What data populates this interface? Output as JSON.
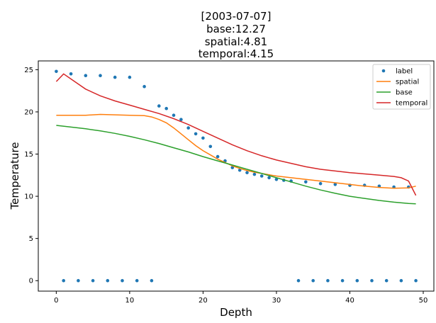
{
  "chart_data": {
    "type": "line",
    "title_lines": [
      "[2003-07-07]",
      "base:12.27",
      "spatial:4.81",
      "temporal:4.15"
    ],
    "xlabel": "Depth",
    "ylabel": "Temperature",
    "xlim": [
      -2.45,
      51.45
    ],
    "ylim": [
      -1.24,
      26.04
    ],
    "x_ticks": [
      0,
      10,
      20,
      30,
      40,
      50
    ],
    "y_ticks": [
      0,
      5,
      10,
      15,
      20,
      25
    ],
    "legend_position": "top-right",
    "series": [
      {
        "name": "label",
        "style": "points",
        "color": "#1f77b4",
        "x": [
          0,
          1,
          2,
          3,
          4,
          5,
          6,
          7,
          8,
          9,
          10,
          11,
          12,
          13,
          14,
          15,
          16,
          17,
          18,
          19,
          20,
          21,
          22,
          23,
          24,
          25,
          26,
          27,
          28,
          29,
          30,
          31,
          32,
          33,
          34,
          35,
          36,
          37,
          38,
          39,
          40,
          41,
          42,
          43,
          44,
          45,
          46,
          47,
          48,
          49
        ],
        "y": [
          24.8,
          0,
          24.5,
          0,
          24.3,
          0,
          24.3,
          0,
          24.1,
          0,
          24.1,
          0,
          23.0,
          0,
          20.7,
          20.4,
          19.6,
          19.1,
          18.1,
          17.4,
          16.9,
          15.9,
          14.7,
          14.2,
          13.4,
          13.1,
          12.8,
          12.6,
          12.4,
          12.2,
          12.0,
          11.9,
          11.8,
          0,
          11.7,
          0,
          11.5,
          0,
          11.4,
          0,
          11.3,
          0,
          11.3,
          0,
          11.2,
          0,
          11.1,
          0,
          11.1,
          0
        ]
      },
      {
        "name": "spatial",
        "style": "line",
        "color": "#ff7f0e",
        "x": [
          0,
          2,
          4,
          6,
          8,
          10,
          12,
          13,
          14,
          15,
          16,
          17,
          18,
          19,
          20,
          21,
          22,
          23,
          24,
          25,
          26,
          27,
          28,
          30,
          32,
          34,
          36,
          38,
          40,
          42,
          44,
          46,
          48,
          49
        ],
        "y": [
          19.6,
          19.6,
          19.6,
          19.7,
          19.65,
          19.6,
          19.55,
          19.4,
          19.1,
          18.7,
          18.1,
          17.4,
          16.7,
          16.0,
          15.4,
          14.9,
          14.4,
          14.0,
          13.6,
          13.3,
          13.05,
          12.85,
          12.7,
          12.4,
          12.2,
          12.0,
          11.8,
          11.6,
          11.4,
          11.2,
          11.05,
          10.95,
          11.0,
          11.2
        ]
      },
      {
        "name": "base",
        "style": "line",
        "color": "#2ca02c",
        "x": [
          0,
          2,
          4,
          6,
          8,
          10,
          12,
          14,
          16,
          18,
          20,
          22,
          24,
          26,
          28,
          30,
          32,
          34,
          36,
          38,
          40,
          42,
          44,
          46,
          48,
          49
        ],
        "y": [
          18.4,
          18.2,
          18.0,
          17.75,
          17.45,
          17.1,
          16.7,
          16.25,
          15.75,
          15.25,
          14.7,
          14.2,
          13.7,
          13.2,
          12.7,
          12.2,
          11.7,
          11.2,
          10.75,
          10.35,
          10.0,
          9.75,
          9.5,
          9.3,
          9.15,
          9.1
        ]
      },
      {
        "name": "temporal",
        "style": "line",
        "color": "#d62728",
        "x": [
          0,
          1,
          2,
          3,
          4,
          6,
          8,
          10,
          12,
          14,
          16,
          18,
          20,
          22,
          24,
          26,
          28,
          30,
          32,
          34,
          36,
          38,
          40,
          42,
          44,
          46,
          47,
          48,
          49
        ],
        "y": [
          23.6,
          24.5,
          23.9,
          23.3,
          22.7,
          21.9,
          21.3,
          20.8,
          20.3,
          19.8,
          19.2,
          18.5,
          17.7,
          16.9,
          16.1,
          15.4,
          14.8,
          14.3,
          13.9,
          13.5,
          13.2,
          13.0,
          12.8,
          12.65,
          12.5,
          12.35,
          12.2,
          11.8,
          10.1
        ]
      }
    ]
  }
}
